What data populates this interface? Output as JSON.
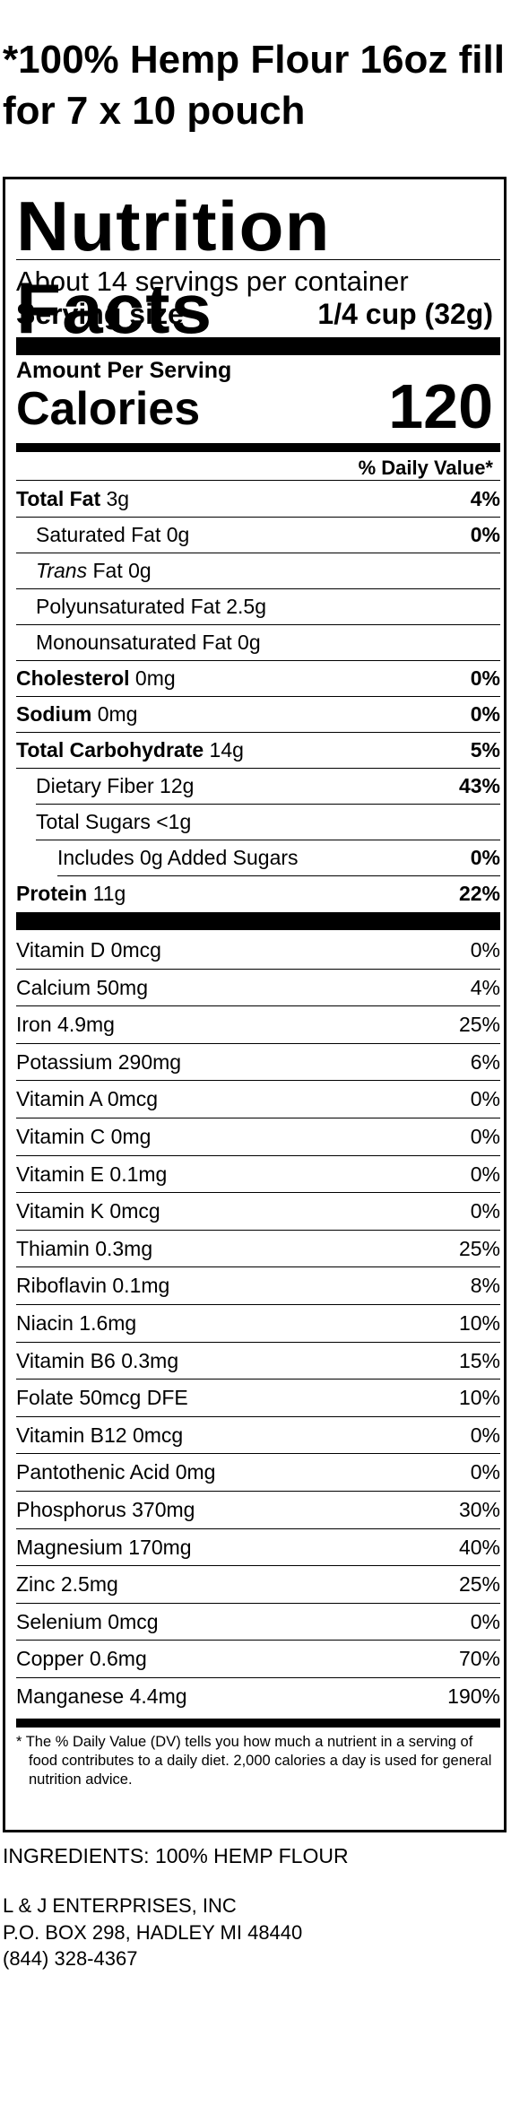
{
  "product_title": {
    "line1": "*100% Hemp Flour 16oz fill",
    "line2": "for 7 x 10 pouch"
  },
  "label": {
    "heading": "Nutrition Facts",
    "servings_per_container": "About 14 servings per container",
    "serving_size_label": "Serving size",
    "serving_size_value": "1/4 cup (32g)",
    "amount_per_serving": "Amount Per Serving",
    "calories_label": "Calories",
    "calories_value": "120",
    "daily_value_header": "% Daily Value*",
    "nutrients": [
      {
        "bold_name": "Total Fat",
        "amount": "3g",
        "dv": "4%"
      },
      {
        "name": "Saturated Fat 0g",
        "dv": "0%"
      },
      {
        "italic_name": "Trans",
        "name": "Fat 0g",
        "dv": ""
      },
      {
        "name": "Polyunsaturated Fat 2.5g",
        "dv": ""
      },
      {
        "name": "Monounsaturated Fat 0g",
        "dv": ""
      },
      {
        "bold_name": "Cholesterol",
        "amount": "0mg",
        "dv": "0%"
      },
      {
        "bold_name": "Sodium",
        "amount": "0mg",
        "dv": "0%"
      },
      {
        "bold_name": "Total Carbohydrate",
        "amount": "14g",
        "dv": "5%"
      },
      {
        "name": "Dietary Fiber 12g",
        "dv": "43%"
      },
      {
        "name": "Total Sugars <1g",
        "dv": ""
      },
      {
        "name": "Includes 0g Added Sugars",
        "dv": "0%"
      },
      {
        "bold_name": "Protein",
        "amount": "11g",
        "dv": "22%"
      }
    ],
    "vitamins": [
      {
        "name": "Vitamin D 0mcg",
        "dv": "0%"
      },
      {
        "name": "Calcium 50mg",
        "dv": "4%"
      },
      {
        "name": "Iron 4.9mg",
        "dv": "25%"
      },
      {
        "name": "Potassium 290mg",
        "dv": "6%"
      },
      {
        "name": "Vitamin A 0mcg",
        "dv": "0%"
      },
      {
        "name": "Vitamin C 0mg",
        "dv": "0%"
      },
      {
        "name": "Vitamin E 0.1mg",
        "dv": "0%"
      },
      {
        "name": "Vitamin K 0mcg",
        "dv": "0%"
      },
      {
        "name": "Thiamin 0.3mg",
        "dv": "25%"
      },
      {
        "name": "Riboflavin 0.1mg",
        "dv": "8%"
      },
      {
        "name": "Niacin 1.6mg",
        "dv": "10%"
      },
      {
        "name": "Vitamin B6 0.3mg",
        "dv": "15%"
      },
      {
        "name": "Folate 50mcg DFE",
        "dv": "10%"
      },
      {
        "name": "Vitamin B12 0mcg",
        "dv": "0%"
      },
      {
        "name": "Pantothenic Acid 0mg",
        "dv": "0%"
      },
      {
        "name": "Phosphorus 370mg",
        "dv": "30%"
      },
      {
        "name": "Magnesium 170mg",
        "dv": "40%"
      },
      {
        "name": "Zinc 2.5mg",
        "dv": "25%"
      },
      {
        "name": "Selenium 0mcg",
        "dv": "0%"
      },
      {
        "name": "Copper 0.6mg",
        "dv": "70%"
      },
      {
        "name": "Manganese 4.4mg",
        "dv": "190%"
      }
    ],
    "footnote": "* The % Daily Value (DV) tells you how much a nutrient in a serving of food contributes to a daily diet. 2,000 calories a day is used for general nutrition advice."
  },
  "ingredients": "INGREDIENTS: 100% HEMP FLOUR",
  "company": {
    "name": "L & J ENTERPRISES, INC",
    "address": "P.O. BOX 298, HADLEY MI 48440",
    "phone": "(844) 328-4367"
  }
}
